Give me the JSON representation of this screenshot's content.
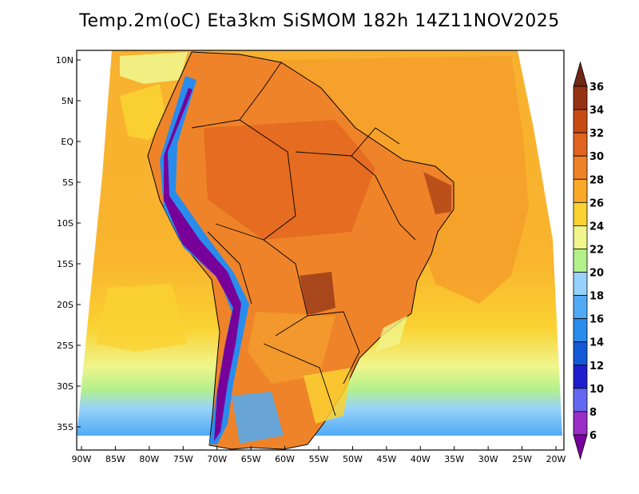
{
  "title": "Temp.2m(oC) Eta3km SiSMOM 182h 14Z11NOV2025",
  "map": {
    "variable": "2 m temperature",
    "unit": "oC",
    "model": "Eta3km",
    "lat_labels": [
      "10N",
      "5N",
      "EQ",
      "5S",
      "10S",
      "15S",
      "20S",
      "25S",
      "30S",
      "35S"
    ],
    "lon_labels": [
      "90W",
      "85W",
      "80W",
      "75W",
      "70W",
      "65W",
      "60W",
      "55W",
      "50W",
      "45W",
      "40W",
      "35W",
      "30W",
      "25W",
      "20W"
    ]
  },
  "colorbar": {
    "labels": [
      "6",
      "8",
      "10",
      "12",
      "14",
      "16",
      "18",
      "20",
      "22",
      "24",
      "26",
      "28",
      "30",
      "32",
      "34",
      "36"
    ],
    "colors": [
      "#78009a",
      "#9a2dc8",
      "#6468f0",
      "#1e1ecd",
      "#145ad7",
      "#288ced",
      "#50aaf5",
      "#96d2fa",
      "#b4f08c",
      "#f0f58c",
      "#fad232",
      "#faaa28",
      "#f08228",
      "#e1641e",
      "#c84b14",
      "#963214",
      "#6e2814"
    ]
  }
}
